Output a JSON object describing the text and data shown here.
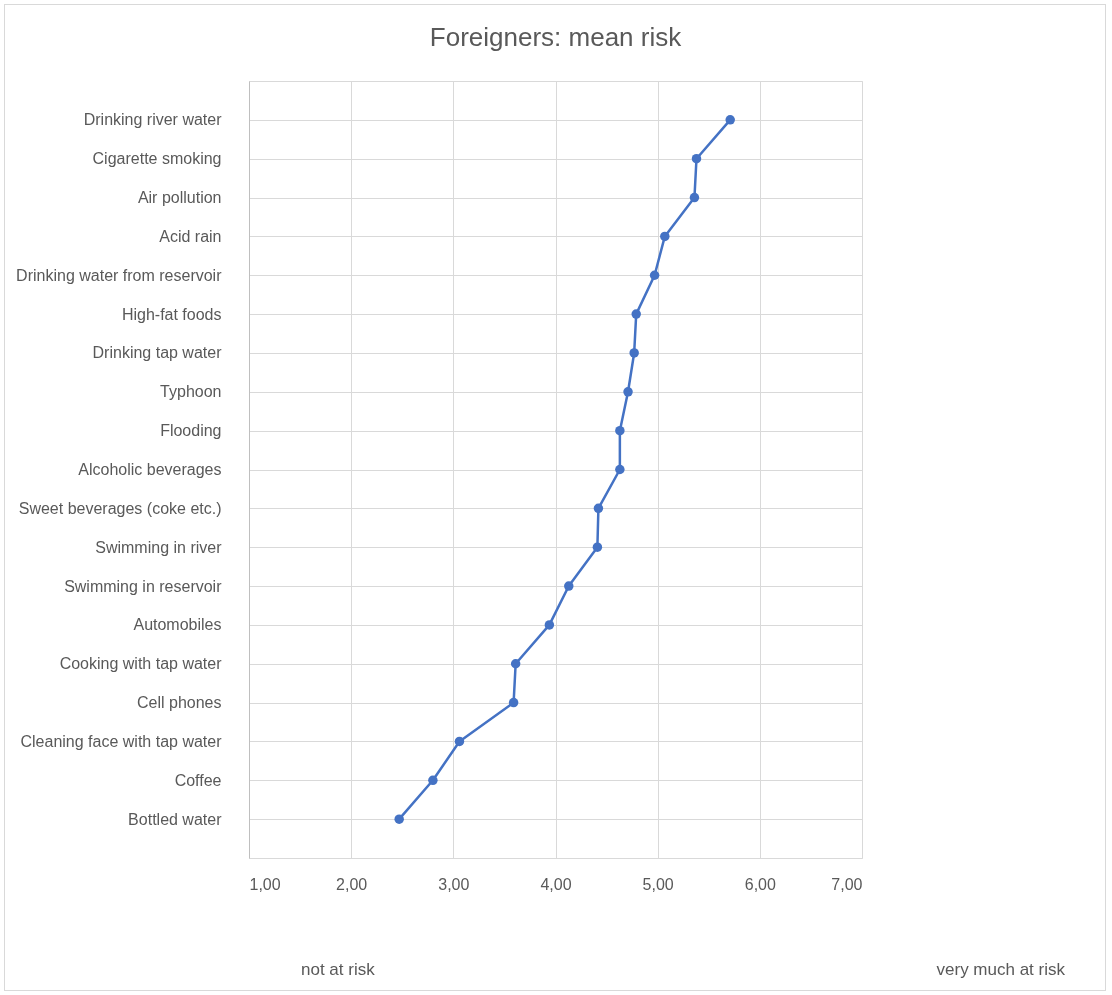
{
  "chart_data": {
    "type": "line",
    "orientation": "horizontal",
    "title": "Foreigners: mean risk",
    "categories": [
      "Drinking river water",
      "Cigarette smoking",
      "Air pollution",
      "Acid rain",
      "Drinking water from reservoir",
      "High-fat foods",
      "Drinking tap water",
      "Typhoon",
      "Flooding",
      "Alcoholic beverages",
      "Sweet beverages (coke etc.)",
      "Swimming in river",
      "Swimming in reservoir",
      "Automobiles",
      "Cooking with tap water",
      "Cell phones",
      "Cleaning face with tap water",
      "Coffee",
      "Bottled water"
    ],
    "series": [
      {
        "color": "#4472c4",
        "values": [
          5.71,
          5.38,
          5.36,
          5.07,
          4.97,
          4.79,
          4.77,
          4.71,
          4.63,
          4.63,
          4.42,
          4.41,
          4.13,
          3.94,
          3.61,
          3.59,
          3.06,
          2.8,
          2.47
        ]
      }
    ],
    "xlim": [
      1,
      7
    ],
    "xticks": [
      {
        "value": 1,
        "label": "1,00"
      },
      {
        "value": 2,
        "label": "2,00"
      },
      {
        "value": 3,
        "label": "3,00"
      },
      {
        "value": 4,
        "label": "4,00"
      },
      {
        "value": 5,
        "label": "5,00"
      },
      {
        "value": 6,
        "label": "6,00"
      },
      {
        "value": 7,
        "label": "7,00"
      }
    ],
    "grid": true,
    "marker": "circle",
    "legend": false,
    "annotations": [
      "not at risk",
      "very much at risk"
    ]
  }
}
